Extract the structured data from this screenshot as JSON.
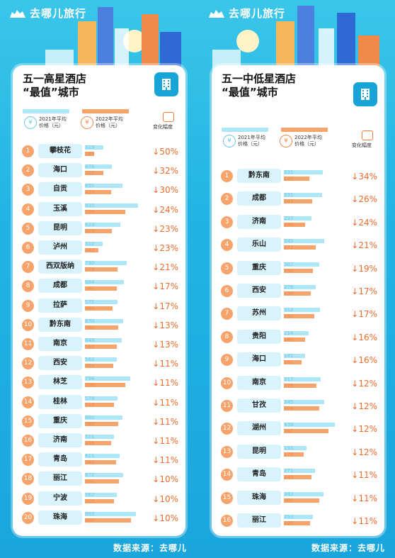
{
  "brand": {
    "name": "去哪儿旅行"
  },
  "colors": {
    "bg": "#22b3e3",
    "accent_blue": "#19a4d8",
    "bar_2021": "#aee6f7",
    "bar_2022": "#f7a36c",
    "change": "#ee6b2c"
  },
  "legend": {
    "y2021": "2021年平均\n价格（元）",
    "y2022": "2022年平均\n价格（元）",
    "change": "变化幅度"
  },
  "source": "数据来源：去哪儿",
  "chart_data": [
    {
      "type": "bar",
      "title": "五一高星酒店\n“最值”城市",
      "series": [
        {
          "name": "2021年平均价格（元）"
        },
        {
          "name": "2022年平均价格（元）"
        }
      ],
      "rows": [
        {
          "rank": "1",
          "city": "攀枝花",
          "v2021": 319,
          "v2022": 160,
          "change": "↓50%"
        },
        {
          "rank": "2",
          "city": "海口",
          "v2021": 478,
          "v2022": 327,
          "change": "↓32%"
        },
        {
          "rank": "3",
          "city": "自贡",
          "v2021": 655,
          "v2022": 457,
          "change": "↓30%"
        },
        {
          "rank": "4",
          "city": "玉溪",
          "v2021": 935,
          "v2022": 709,
          "change": "↓24%"
        },
        {
          "rank": "5",
          "city": "昆明",
          "v2021": 623,
          "v2022": 479,
          "change": "↓23%"
        },
        {
          "rank": "6",
          "city": "泸州",
          "v2021": 312,
          "v2022": 240,
          "change": "↓23%"
        },
        {
          "rank": "7",
          "city": "西双版纳",
          "v2021": 730,
          "v2022": 579,
          "change": "↓21%"
        },
        {
          "rank": "8",
          "city": "成都",
          "v2021": 684,
          "v2022": 567,
          "change": "↓17%"
        },
        {
          "rank": "9",
          "city": "拉萨",
          "v2021": 575,
          "v2022": 480,
          "change": "↓17%"
        },
        {
          "rank": "10",
          "city": "黔东南",
          "v2021": 670,
          "v2022": 580,
          "change": "↓13%"
        },
        {
          "rank": "11",
          "city": "南京",
          "v2021": 649,
          "v2022": 563,
          "change": "↓13%"
        },
        {
          "rank": "12",
          "city": "西安",
          "v2021": 563,
          "v2022": 499,
          "change": "↓11%"
        },
        {
          "rank": "13",
          "city": "林芝",
          "v2021": 798,
          "v2022": 706,
          "change": "↓11%"
        },
        {
          "rank": "14",
          "city": "桂林",
          "v2021": 579,
          "v2022": 514,
          "change": "↓11%"
        },
        {
          "rank": "15",
          "city": "重庆",
          "v2021": 660,
          "v2022": 588,
          "change": "↓11%"
        },
        {
          "rank": "16",
          "city": "济南",
          "v2021": 511,
          "v2022": 456,
          "change": "↓11%"
        },
        {
          "rank": "17",
          "city": "青岛",
          "v2021": 611,
          "v2022": 546,
          "change": "↓11%"
        },
        {
          "rank": "18",
          "city": "丽江",
          "v2021": 672,
          "v2022": 602,
          "change": "↓10%"
        },
        {
          "rank": "19",
          "city": "宁波",
          "v2021": 562,
          "v2022": 505,
          "change": "↓10%"
        },
        {
          "rank": "20",
          "city": "珠海",
          "v2021": 893,
          "v2022": 807,
          "change": "↓10%"
        }
      ]
    },
    {
      "type": "bar",
      "title": "五一中低星酒店\n“最值”城市",
      "series": [
        {
          "name": "2021年平均价格（元）"
        },
        {
          "name": "2022年平均价格（元）"
        }
      ],
      "rows": [
        {
          "rank": "1",
          "city": "黔东南",
          "v2021": 335,
          "v2022": 220,
          "change": "↓34%"
        },
        {
          "rank": "2",
          "city": "成都",
          "v2021": 331,
          "v2022": 245,
          "change": "↓26%"
        },
        {
          "rank": "3",
          "city": "济南",
          "v2021": 237,
          "v2022": 180,
          "change": "↓24%"
        },
        {
          "rank": "4",
          "city": "乐山",
          "v2021": 345,
          "v2022": 272,
          "change": "↓21%"
        },
        {
          "rank": "5",
          "city": "重庆",
          "v2021": 307,
          "v2022": 250,
          "change": "↓19%"
        },
        {
          "rank": "6",
          "city": "西安",
          "v2021": 276,
          "v2022": 230,
          "change": "↓17%"
        },
        {
          "rank": "7",
          "city": "苏州",
          "v2021": 312,
          "v2022": 260,
          "change": "↓17%"
        },
        {
          "rank": "8",
          "city": "贵阳",
          "v2021": 214,
          "v2022": 180,
          "change": "↓16%"
        },
        {
          "rank": "9",
          "city": "海口",
          "v2021": 181,
          "v2022": 152,
          "change": "↓16%"
        },
        {
          "rank": "10",
          "city": "南京",
          "v2021": 317,
          "v2022": 278,
          "change": "↓12%"
        },
        {
          "rank": "11",
          "city": "甘孜",
          "v2021": 345,
          "v2022": 304,
          "change": "↓12%"
        },
        {
          "rank": "12",
          "city": "湖州",
          "v2021": 439,
          "v2022": 387,
          "change": "↓12%"
        },
        {
          "rank": "13",
          "city": "昆明",
          "v2021": 193,
          "v2022": 170,
          "change": "↓12%"
        },
        {
          "rank": "14",
          "city": "青岛",
          "v2021": 271,
          "v2022": 240,
          "change": "↓11%"
        },
        {
          "rank": "15",
          "city": "珠海",
          "v2021": 343,
          "v2022": 305,
          "change": "↓11%"
        },
        {
          "rank": "16",
          "city": "丽江",
          "v2021": 253,
          "v2022": 225,
          "change": "↓11%"
        }
      ]
    }
  ]
}
